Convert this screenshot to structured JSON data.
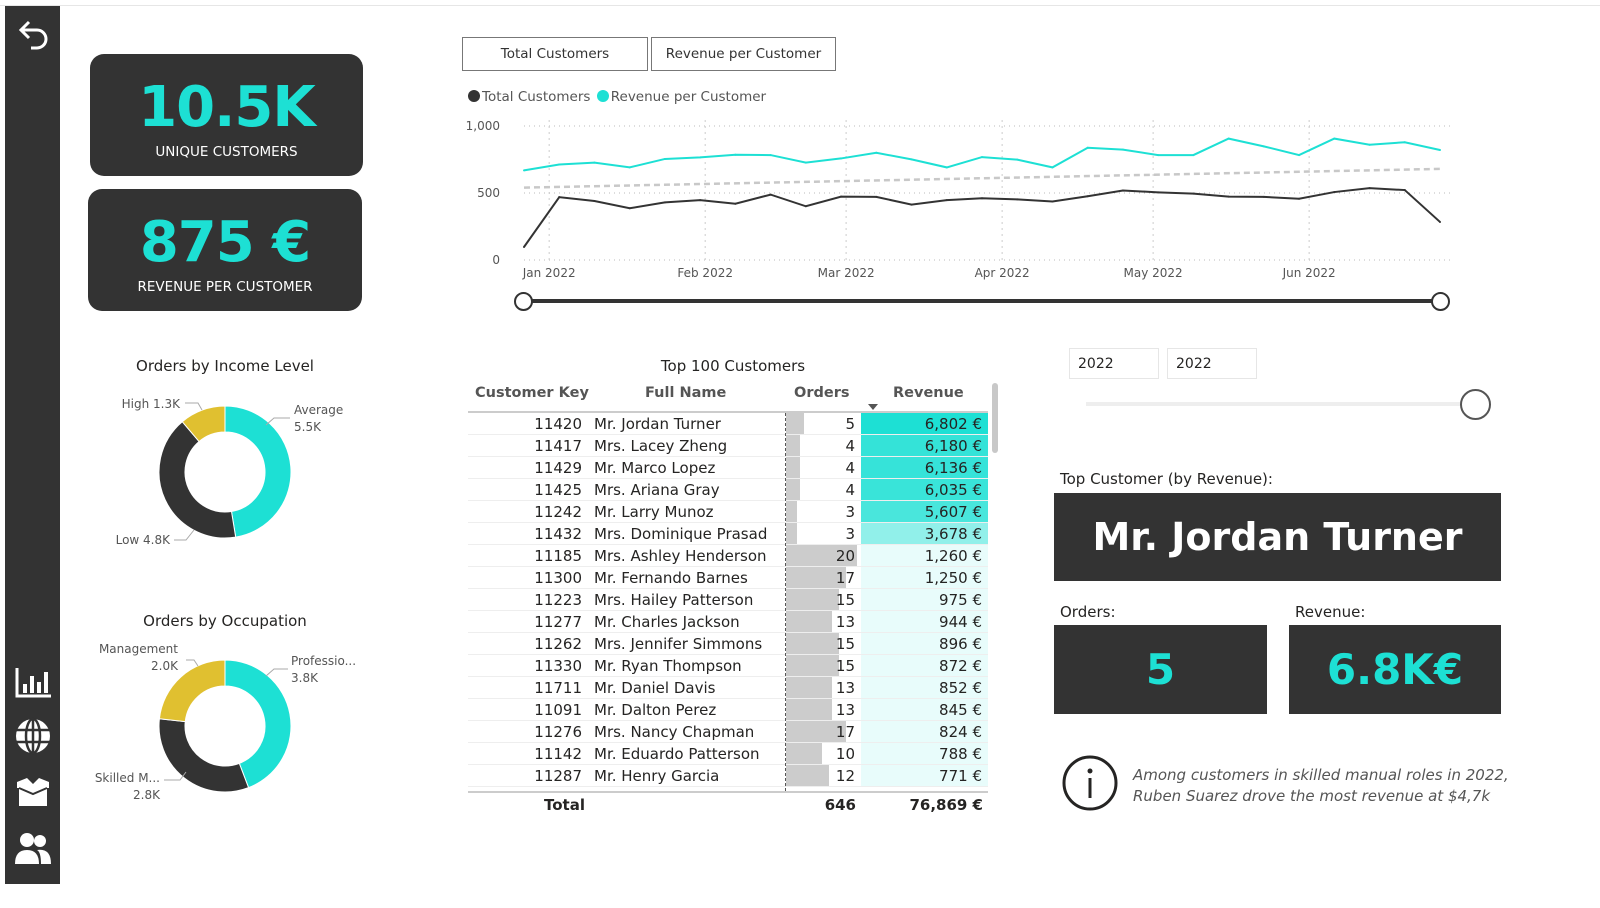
{
  "sidebar": {
    "items": [
      {
        "icon": "back-arrow-icon"
      },
      {
        "icon": "bar-chart-icon"
      },
      {
        "icon": "globe-icon"
      },
      {
        "icon": "box-icon"
      },
      {
        "icon": "users-icon"
      }
    ]
  },
  "kpis": {
    "unique_customers": {
      "value": "10.5K",
      "label": "UNIQUE CUSTOMERS"
    },
    "revenue_per_customer": {
      "value": "875 €",
      "label": "REVENUE PER CUSTOMER"
    }
  },
  "toggle_buttons": [
    "Total Customers",
    "Revenue per Customer"
  ],
  "colors": {
    "accent": "#1DE0D4",
    "dark": "#333333",
    "yellow": "#E0C030",
    "trend": "#C8C8C8"
  },
  "chart_data": [
    {
      "type": "line",
      "legend": [
        "Total Customers",
        "Revenue per Customer"
      ],
      "legend_position": "top-left",
      "grid": true,
      "y_ticks": [
        "0",
        "500",
        "1,000"
      ],
      "ylim": [
        0,
        1000
      ],
      "x_ticks": [
        {
          "date": "2022-01-01",
          "label": "Jan 2022"
        },
        {
          "date": "2022-02-01",
          "label": "Feb 2022"
        },
        {
          "date": "2022-03-01",
          "label": "Mar 2022"
        },
        {
          "date": "2022-04-01",
          "label": "Apr 2022"
        },
        {
          "date": "2022-05-01",
          "label": "May 2022"
        },
        {
          "date": "2022-06-01",
          "label": "Jun 2022"
        }
      ],
      "x": [
        "2021-12-27",
        "2022-01-03",
        "2022-01-10",
        "2022-01-17",
        "2022-01-24",
        "2022-01-31",
        "2022-02-07",
        "2022-02-14",
        "2022-02-21",
        "2022-02-28",
        "2022-03-07",
        "2022-03-14",
        "2022-03-21",
        "2022-03-28",
        "2022-04-04",
        "2022-04-11",
        "2022-04-18",
        "2022-04-25",
        "2022-05-02",
        "2022-05-09",
        "2022-05-16",
        "2022-05-23",
        "2022-05-30",
        "2022-06-06",
        "2022-06-13",
        "2022-06-20",
        "2022-06-27"
      ],
      "series": [
        {
          "name": "Total Customers",
          "color": "#333333",
          "values": [
            97,
            469,
            440,
            386,
            430,
            447,
            420,
            488,
            401,
            473,
            471,
            413,
            447,
            461,
            452,
            437,
            476,
            519,
            505,
            495,
            473,
            471,
            457,
            507,
            536,
            522,
            284
          ]
        },
        {
          "name": "Revenue per Customer",
          "color": "#1DE0D4",
          "values": [
            669,
            713,
            727,
            691,
            754,
            766,
            785,
            783,
            727,
            758,
            800,
            751,
            691,
            768,
            749,
            691,
            838,
            824,
            783,
            783,
            906,
            848,
            783,
            906,
            860,
            879,
            821
          ]
        }
      ],
      "trendline": {
        "start": 540,
        "end": 680,
        "style": "dashed"
      }
    },
    {
      "type": "pie",
      "donut": true,
      "title": "Orders by Income Level",
      "slices": [
        {
          "label": "Average",
          "display": "5.5K",
          "value": 5.5,
          "color": "#1DE0D4"
        },
        {
          "label": "Low",
          "display": "4.8K",
          "value": 4.8,
          "color": "#333333"
        },
        {
          "label": "High",
          "display": "1.3K",
          "value": 1.3,
          "color": "#E0C030"
        }
      ]
    },
    {
      "type": "pie",
      "donut": true,
      "title": "Orders by Occupation",
      "slices": [
        {
          "label": "Professio...",
          "display": "3.8K",
          "value": 3.8,
          "color": "#1DE0D4"
        },
        {
          "label": "Skilled M...",
          "display": "2.8K",
          "value": 2.8,
          "color": "#333333"
        },
        {
          "label": "Management",
          "display": "2.0K",
          "value": 2.0,
          "color": "#E0C030"
        }
      ]
    }
  ],
  "table": {
    "title": "Top 100 Customers",
    "columns": [
      "Customer Key",
      "Full Name",
      "Orders",
      "Revenue"
    ],
    "sort_column": "Revenue",
    "sort": "descending",
    "rows": [
      [
        "11420",
        "Mr. Jordan Turner",
        5,
        "6,802 €",
        6802
      ],
      [
        "11417",
        "Mrs. Lacey Zheng",
        4,
        "6,180 €",
        6180
      ],
      [
        "11429",
        "Mr. Marco Lopez",
        4,
        "6,136 €",
        6136
      ],
      [
        "11425",
        "Mrs. Ariana Gray",
        4,
        "6,035 €",
        6035
      ],
      [
        "11242",
        "Mr. Larry Munoz",
        3,
        "5,607 €",
        5607
      ],
      [
        "11432",
        "Mrs. Dominique Prasad",
        3,
        "3,678 €",
        3678
      ],
      [
        "11185",
        "Mrs. Ashley Henderson",
        20,
        "1,260 €",
        1260
      ],
      [
        "11300",
        "Mr. Fernando Barnes",
        17,
        "1,250 €",
        1250
      ],
      [
        "11223",
        "Mrs. Hailey Patterson",
        15,
        "975 €",
        975
      ],
      [
        "11277",
        "Mr. Charles Jackson",
        13,
        "944 €",
        944
      ],
      [
        "11262",
        "Mrs. Jennifer Simmons",
        15,
        "896 €",
        896
      ],
      [
        "11330",
        "Mr. Ryan Thompson",
        15,
        "872 €",
        872
      ],
      [
        "11711",
        "Mr. Daniel Davis",
        13,
        "852 €",
        852
      ],
      [
        "11091",
        "Mr. Dalton Perez",
        13,
        "845 €",
        845
      ],
      [
        "11276",
        "Mrs. Nancy Chapman",
        17,
        "824 €",
        824
      ],
      [
        "11142",
        "Mr. Eduardo Patterson",
        10,
        "788 €",
        788
      ],
      [
        "11287",
        "Mr. Henry Garcia",
        12,
        "771 €",
        771
      ]
    ],
    "total": {
      "label": "Total",
      "orders": "646",
      "revenue": "76,869 €"
    }
  },
  "year_filter": {
    "from": "2022",
    "to": "2022"
  },
  "top_customer": {
    "label": "Top Customer (by Revenue):",
    "name": "Mr. Jordan Turner",
    "orders_label": "Orders:",
    "orders": "5",
    "revenue_label": "Revenue:",
    "revenue": "6.8K€"
  },
  "insight": {
    "icon": "info-icon",
    "text_line1": "Among customers in skilled manual roles in 2022,",
    "text_line2": "Ruben Suarez drove the most revenue at $4,7k"
  }
}
